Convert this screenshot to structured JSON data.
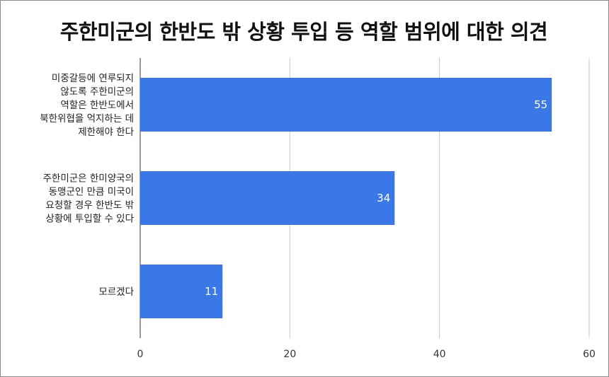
{
  "chart_data": {
    "type": "bar",
    "orientation": "horizontal",
    "title": "주한미군의 한반도 밖 상황 투입 등 역할 범위에 대한 의견",
    "categories": [
      [
        "미중갈등에 연루되지",
        "않도록 주한미군의",
        "역할은 한반도에서",
        "북한위협을 억지하는 데",
        "제한해야 한다"
      ],
      [
        "주한미군은 한미양국의",
        "동맹군인 만큼 미국이",
        "요청할 경우 한반도 밖",
        "상황에 투입할 수 있다"
      ],
      [
        "모르겠다"
      ]
    ],
    "values": [
      55,
      34,
      11
    ],
    "data_labels": [
      "55",
      "34",
      "11"
    ],
    "x_ticks": [
      "0",
      "20",
      "40",
      "60"
    ],
    "xlim": [
      0,
      60
    ],
    "grid": true,
    "bar_color": "#3b78e7",
    "grid_color": "#c8c8c8"
  }
}
